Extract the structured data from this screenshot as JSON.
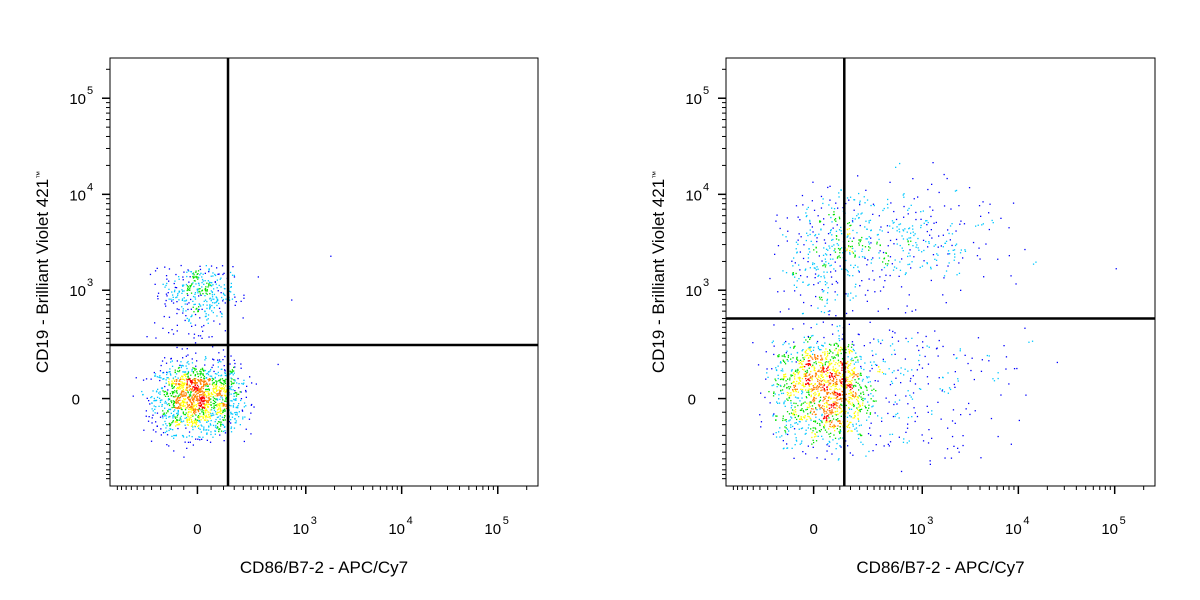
{
  "chart_data": [
    {
      "type": "scatter",
      "xlabel": "CD86/B7-2 - APC/Cy7",
      "ylabel": "CD19 - Brilliant Violet 421",
      "ylabel_mark": "™",
      "x_scale": "biexponential",
      "y_scale": "biexponential",
      "x_ticks": [
        {
          "value": 0,
          "base": "0",
          "exp": ""
        },
        {
          "value": 1000,
          "base": "10",
          "exp": "3"
        },
        {
          "value": 10000,
          "base": "10",
          "exp": "4"
        },
        {
          "value": 100000,
          "base": "10",
          "exp": "5"
        }
      ],
      "y_ticks": [
        {
          "value": 0,
          "base": "0",
          "exp": ""
        },
        {
          "value": 1000,
          "base": "10",
          "exp": "3"
        },
        {
          "value": 10000,
          "base": "10",
          "exp": "4"
        },
        {
          "value": 100000,
          "base": "10",
          "exp": "5"
        }
      ],
      "quadrant_gate": {
        "x": 120,
        "y": 250
      },
      "populations": [
        {
          "cx": 0,
          "cy": 0,
          "sx": 90,
          "sy": 70,
          "n": 1400
        },
        {
          "cx": 0,
          "cy": 950,
          "sx": 70,
          "sy": 420,
          "n": 380
        }
      ],
      "sparse_points": [
        {
          "x": 1800,
          "y": 2300
        },
        {
          "x": 700,
          "y": 800
        },
        {
          "x": 500,
          "y": 140
        },
        {
          "x": 300,
          "y": 1400
        },
        {
          "x": 250,
          "y": 60
        },
        {
          "x": 200,
          "y": 900
        }
      ],
      "density_palette": [
        "#0000ff",
        "#00c8ff",
        "#00e000",
        "#ffff00",
        "#ff8000",
        "#ff0000"
      ]
    },
    {
      "type": "scatter",
      "xlabel": "CD86/B7-2 - APC/Cy7",
      "ylabel": "CD19 - Brilliant Violet 421",
      "ylabel_mark": "™",
      "x_scale": "biexponential",
      "y_scale": "biexponential",
      "x_ticks": [
        {
          "value": 0,
          "base": "0",
          "exp": ""
        },
        {
          "value": 1000,
          "base": "10",
          "exp": "3"
        },
        {
          "value": 10000,
          "base": "10",
          "exp": "4"
        },
        {
          "value": 100000,
          "base": "10",
          "exp": "5"
        }
      ],
      "y_ticks": [
        {
          "value": 0,
          "base": "0",
          "exp": ""
        },
        {
          "value": 1000,
          "base": "10",
          "exp": "3"
        },
        {
          "value": 10000,
          "base": "10",
          "exp": "4"
        },
        {
          "value": 100000,
          "base": "10",
          "exp": "5"
        }
      ],
      "quadrant_gate": {
        "x": 120,
        "y": 500
      },
      "populations": [
        {
          "cx": 30,
          "cy": 40,
          "sx": 100,
          "sy": 110,
          "n": 1300
        },
        {
          "cx": 450,
          "cy": 3200,
          "sx": 0.55,
          "sy": 0.3,
          "n": 420,
          "log": true
        },
        {
          "cx": 40,
          "cy": 2200,
          "sx": 90,
          "sy": 0.32,
          "n": 260,
          "logy": true
        },
        {
          "cx": 450,
          "cy": 60,
          "sx": 0.6,
          "sy": 160,
          "n": 320,
          "logx": true
        }
      ],
      "sparse_points": [
        {
          "x": 5000,
          "y": 8000
        },
        {
          "x": 15000,
          "y": 2000
        },
        {
          "x": 7000,
          "y": 250
        },
        {
          "x": 25000,
          "y": 150
        },
        {
          "x": 4000,
          "y": 6000
        },
        {
          "x": 9000,
          "y": 120
        }
      ],
      "density_palette": [
        "#0000ff",
        "#00c8ff",
        "#00e000",
        "#ffff00",
        "#ff8000",
        "#ff0000"
      ]
    }
  ]
}
